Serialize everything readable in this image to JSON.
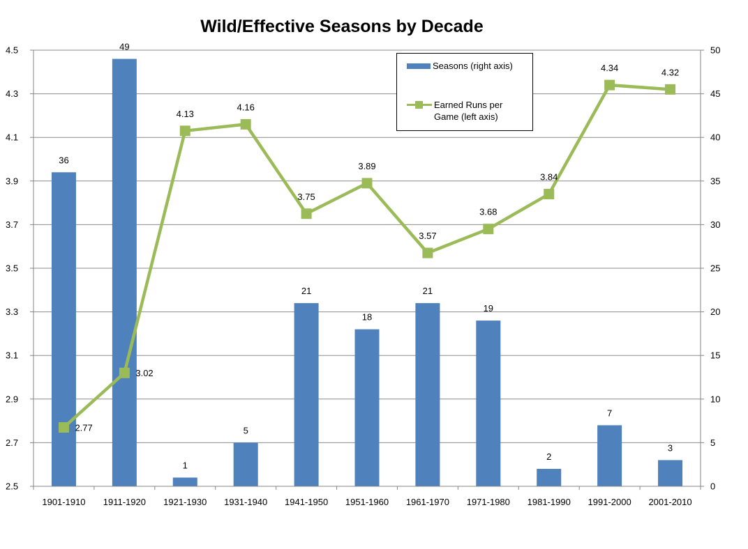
{
  "chart_data": {
    "type": "bar",
    "title": "Wild/Effective Seasons by Decade",
    "categories": [
      "1901-1910",
      "1911-1920",
      "1921-1930",
      "1931-1940",
      "1941-1950",
      "1951-1960",
      "1961-1970",
      "1971-1980",
      "1981-1990",
      "1991-2000",
      "2001-2010"
    ],
    "series": [
      {
        "name": "Seasons (right axis)",
        "type": "bar",
        "axis": "right",
        "color": "#4F81BD",
        "values": [
          36,
          49,
          1,
          5,
          21,
          18,
          21,
          19,
          2,
          7,
          3
        ],
        "labels": [
          "36",
          "49",
          "1",
          "5",
          "21",
          "18",
          "21",
          "19",
          "2",
          "7",
          "3"
        ]
      },
      {
        "name": "Earned Runs per Game (left axis)",
        "type": "line",
        "axis": "left",
        "color": "#9BBB59",
        "marker": "square",
        "values": [
          2.77,
          3.02,
          4.13,
          4.16,
          3.75,
          3.89,
          3.57,
          3.68,
          3.84,
          4.34,
          4.32
        ],
        "labels": [
          "2.77",
          "3.02",
          "4.13",
          "4.16",
          "3.75",
          "3.89",
          "3.57",
          "3.68",
          "3.84",
          "4.34",
          "4.32"
        ]
      }
    ],
    "left_axis": {
      "ylim": [
        2.5,
        4.5
      ],
      "ticks": [
        "2.5",
        "2.7",
        "2.9",
        "3.1",
        "3.3",
        "3.5",
        "3.7",
        "3.9",
        "4.1",
        "4.3",
        "4.5"
      ]
    },
    "right_axis": {
      "ylim": [
        0,
        50
      ],
      "ticks": [
        "0",
        "5",
        "10",
        "15",
        "20",
        "25",
        "30",
        "35",
        "40",
        "45",
        "50"
      ]
    },
    "grid": true,
    "legend": {
      "placement": "top-right",
      "bar_label": "Seasons (right axis)",
      "line_label_1": "Earned Runs per",
      "line_label_2": "Game (left axis)"
    }
  }
}
